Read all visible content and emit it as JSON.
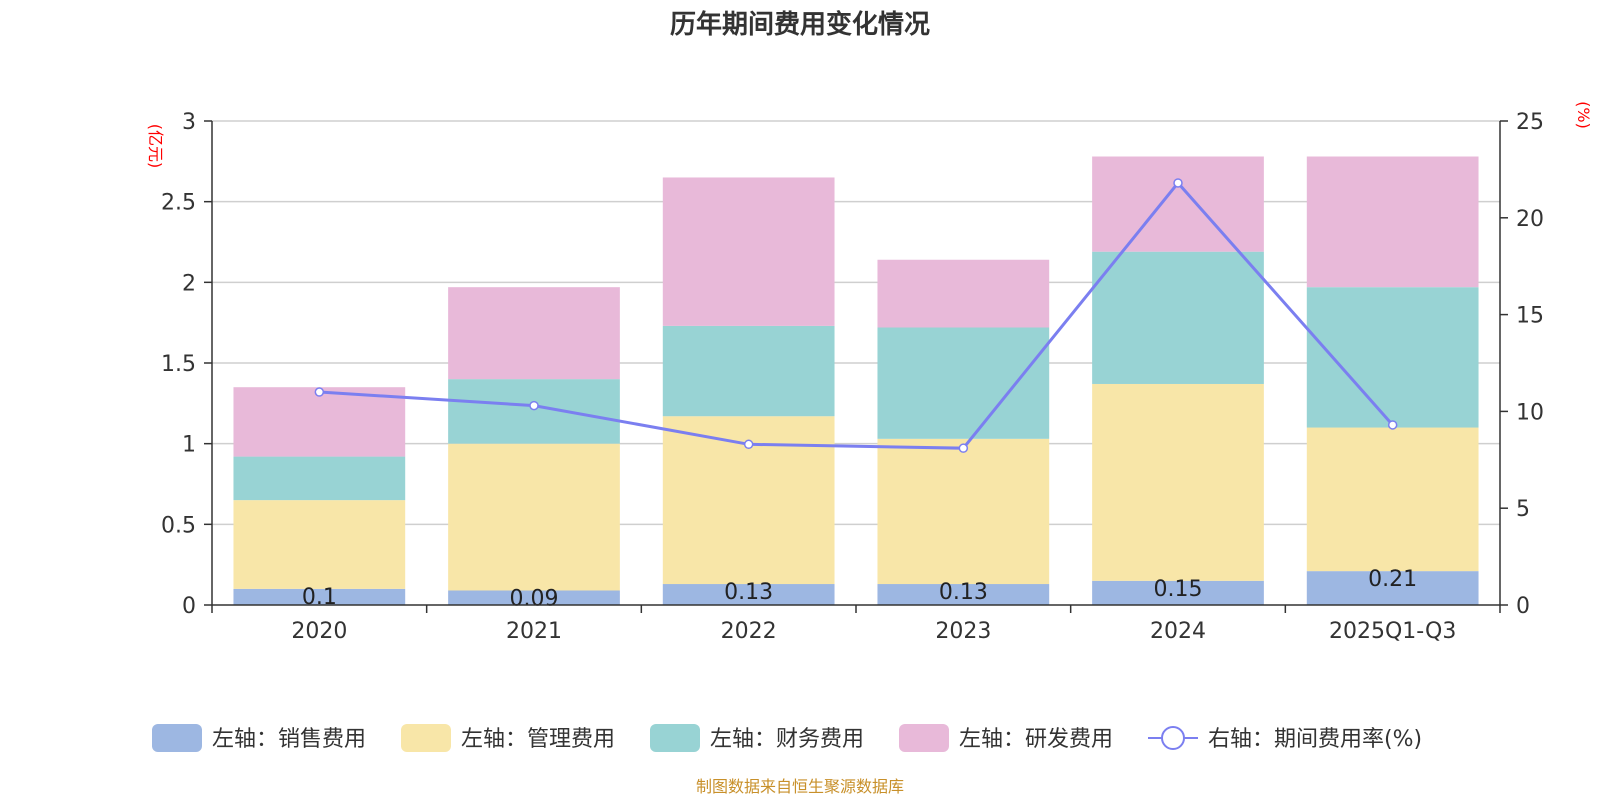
{
  "chart_data": {
    "type": "bar",
    "title": "历年期间费用变化情况",
    "categories": [
      "2020",
      "2021",
      "2022",
      "2023",
      "2024",
      "2025Q1-Q3"
    ],
    "left_axis": {
      "unit": "(亿元)",
      "ylim": [
        0,
        3
      ],
      "ticks": [
        "0",
        "0.5",
        "1",
        "1.5",
        "2",
        "2.5",
        "3"
      ]
    },
    "right_axis": {
      "unit": "(%)",
      "ylim": [
        0,
        25
      ],
      "ticks": [
        "0",
        "5",
        "10",
        "15",
        "20",
        "25"
      ]
    },
    "series": [
      {
        "name": "左轴：销售费用",
        "color": "#9db7e2",
        "values": [
          0.1,
          0.09,
          0.13,
          0.13,
          0.15,
          0.21
        ],
        "labels": [
          "0.1",
          "0.09",
          "0.13",
          "0.13",
          "0.15",
          "0.21"
        ]
      },
      {
        "name": "左轴：管理费用",
        "color": "#f8e6a8",
        "values": [
          0.55,
          0.91,
          1.04,
          0.9,
          1.22,
          0.89
        ]
      },
      {
        "name": "左轴：财务费用",
        "color": "#98d3d4",
        "values": [
          0.27,
          0.4,
          0.56,
          0.69,
          0.82,
          0.87
        ]
      },
      {
        "name": "左轴：研发费用",
        "color": "#e8b9d9",
        "values": [
          0.43,
          0.57,
          0.92,
          0.42,
          0.59,
          0.81
        ]
      }
    ],
    "line": {
      "name": "右轴：期间费用率(%)",
      "color": "#7b7ff0",
      "axis": "right",
      "values": [
        11.0,
        10.3,
        8.3,
        8.1,
        21.8,
        9.3
      ]
    },
    "grid": true,
    "legend_position": "bottom",
    "source_note": "制图数据来自恒生聚源数据库"
  }
}
